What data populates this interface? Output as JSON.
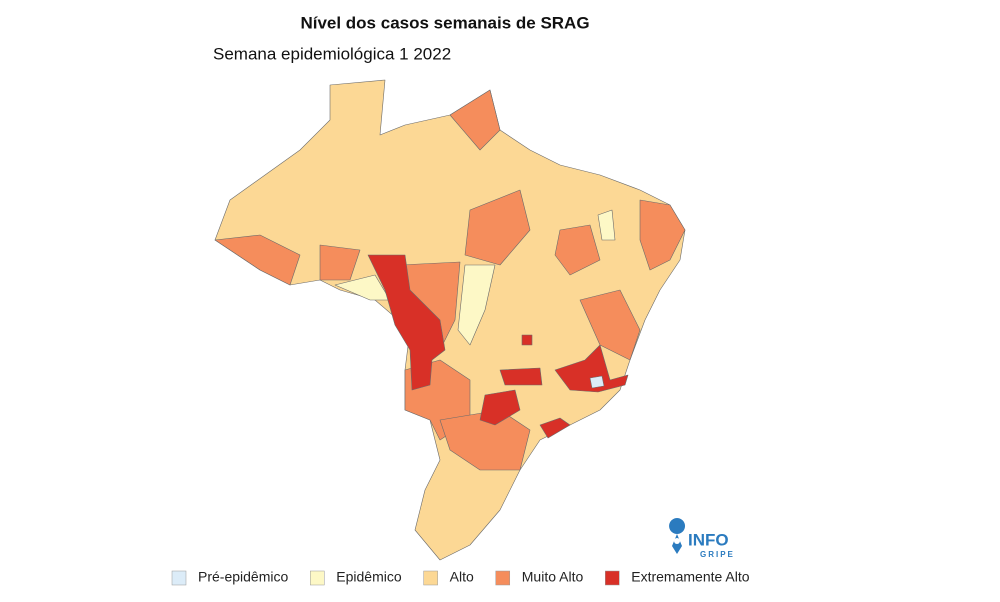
{
  "title": "Nível dos casos semanais de SRAG",
  "subtitle": "Semana epidemiológica 1 2022",
  "logo": {
    "top": "INFO",
    "bottom": "GRIPE"
  },
  "legend": [
    {
      "label": "Pré-epidêmico",
      "color": "#dcecf8"
    },
    {
      "label": "Epidêmico",
      "color": "#fdf8c6"
    },
    {
      "label": "Alto",
      "color": "#fcd895"
    },
    {
      "label": "Muito Alto",
      "color": "#f58d5c"
    },
    {
      "label": "Extremamente Alto",
      "color": "#d83027"
    }
  ]
}
